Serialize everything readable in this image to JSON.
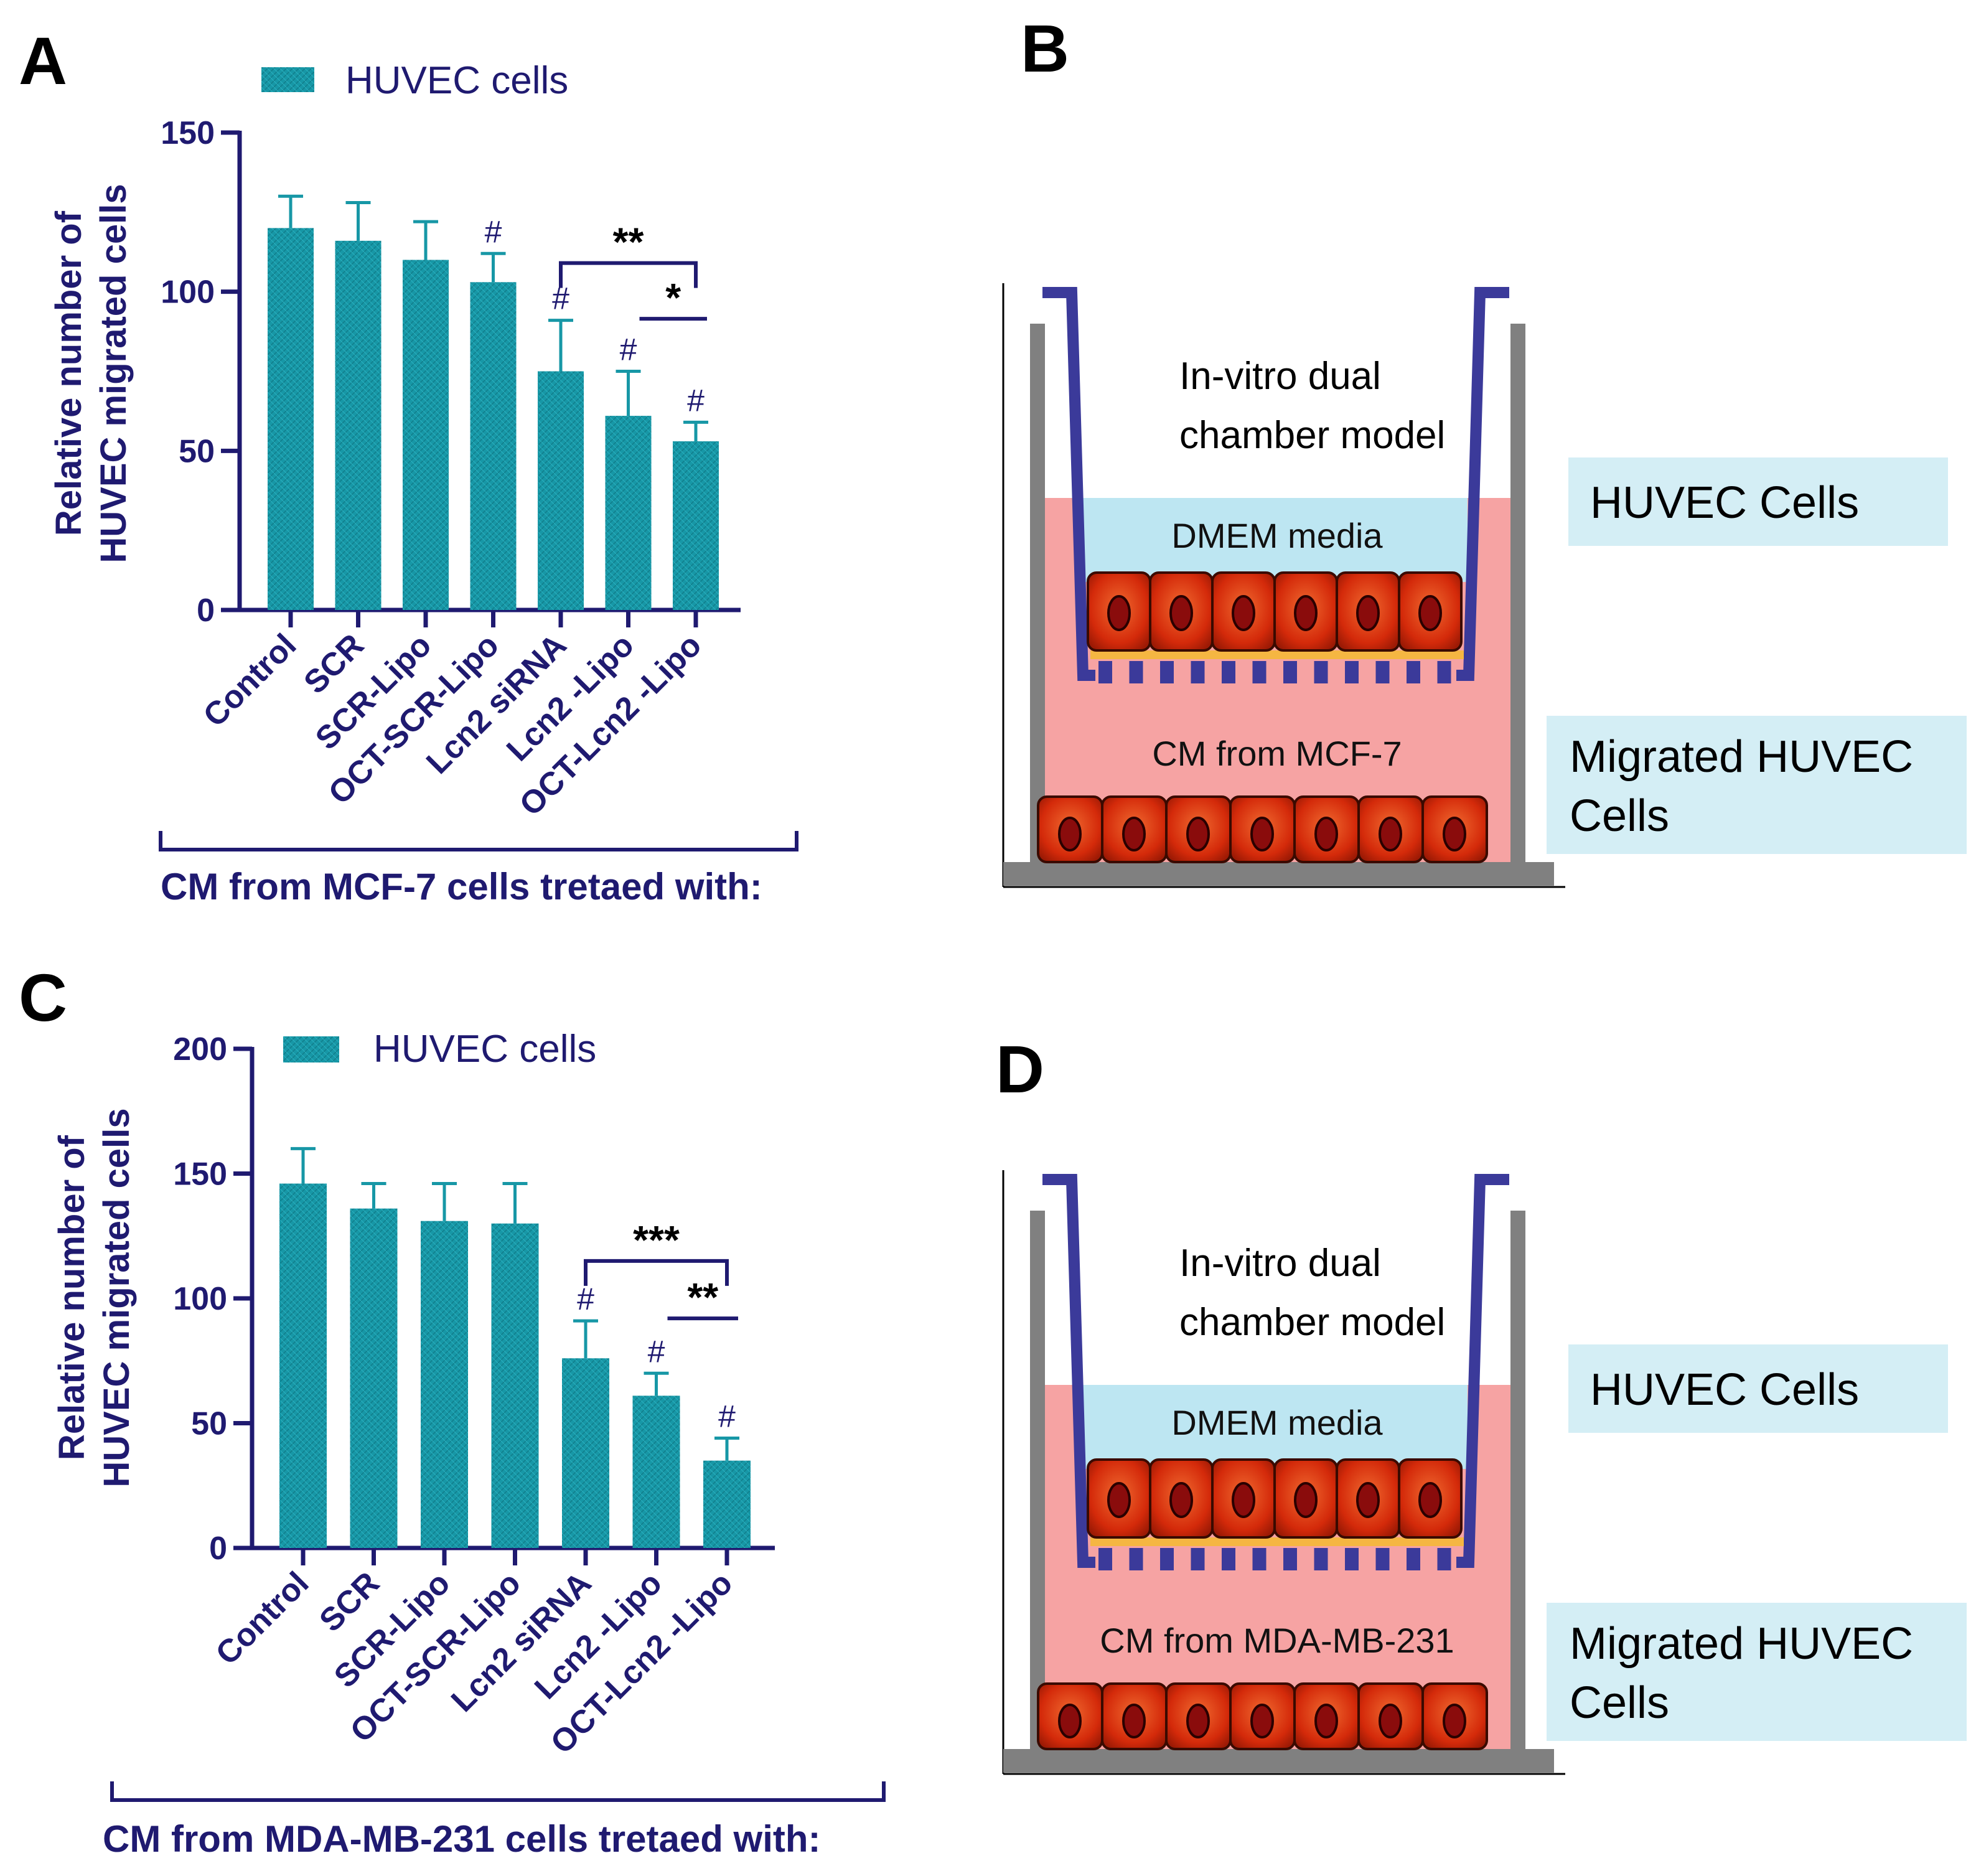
{
  "panels": {
    "A": {
      "letter": "A"
    },
    "B": {
      "letter": "B"
    },
    "C": {
      "letter": "C"
    },
    "D": {
      "letter": "D"
    }
  },
  "colors": {
    "bar": "#1797a6",
    "axis": "#1f1a70",
    "bracket": "#1f1a70",
    "membrane": "#3b3a9a",
    "wall": "#808080",
    "lower_media": "#f6a3a3",
    "upper_media": "#bde6f2",
    "label_box": "#d4eef5",
    "cell": "#d42a0a",
    "nucleus": "#8a0c0c",
    "filter": "#f5b642"
  },
  "chart_data": [
    {
      "panel": "A",
      "type": "bar",
      "legend": "HUVEC cells",
      "ylabel_line1": "Relative number of",
      "ylabel_line2": "HUVEC migrated cells",
      "ylim": [
        0,
        150
      ],
      "yticks": [
        "0",
        "50",
        "100",
        "150"
      ],
      "categories": [
        "Control",
        "SCR",
        "SCR-Lipo",
        "OCT-SCR-Lipo",
        "Lcn2 siRNA",
        "Lcn2 -Lipo",
        "OCT-Lcn2 -Lipo"
      ],
      "values": [
        120,
        116,
        110,
        103,
        75,
        61,
        53
      ],
      "errors": [
        10,
        12,
        12,
        9,
        16,
        14,
        6
      ],
      "markers": [
        "",
        "",
        "",
        "#",
        "#",
        "#",
        "#"
      ],
      "significance": [
        {
          "from": 4,
          "to": 6,
          "label": "**"
        },
        {
          "from": 5,
          "to": 6,
          "label": "*"
        }
      ],
      "caption": "CM from MCF-7 cells tretaed with:"
    },
    {
      "panel": "C",
      "type": "bar",
      "legend": "HUVEC cells",
      "ylabel_line1": "Relative number of",
      "ylabel_line2": "HUVEC migrated cells",
      "ylim": [
        0,
        200
      ],
      "yticks": [
        "0",
        "50",
        "100",
        "150",
        "200"
      ],
      "categories": [
        "Control",
        "SCR",
        "SCR-Lipo",
        "OCT-SCR-Lipo",
        "Lcn2 siRNA",
        "Lcn2 -Lipo",
        "OCT-Lcn2 -Lipo"
      ],
      "values": [
        146,
        136,
        131,
        130,
        76,
        61,
        35
      ],
      "errors": [
        14,
        10,
        15,
        16,
        15,
        9,
        9
      ],
      "markers": [
        "",
        "",
        "",
        "",
        "#",
        "#",
        "#"
      ],
      "significance": [
        {
          "from": 4,
          "to": 6,
          "label": "***"
        },
        {
          "from": 5,
          "to": 6,
          "label": "**"
        }
      ],
      "caption": "CM from MDA-MB-231 cells tretaed with:"
    }
  ],
  "diagrams": [
    {
      "panel": "B",
      "title_line1": "In-vitro dual",
      "title_line2": "chamber model",
      "upper_media": "DMEM media",
      "lower_media": "CM from MCF-7",
      "upper_label": "HUVEC Cells",
      "lower_label_line1": "Migrated HUVEC",
      "lower_label_line2": "Cells"
    },
    {
      "panel": "D",
      "title_line1": "In-vitro dual",
      "title_line2": "chamber model",
      "upper_media": "DMEM media",
      "lower_media": "CM from MDA-MB-231",
      "upper_label": "HUVEC Cells",
      "lower_label_line1": "Migrated HUVEC",
      "lower_label_line2": "Cells"
    }
  ]
}
